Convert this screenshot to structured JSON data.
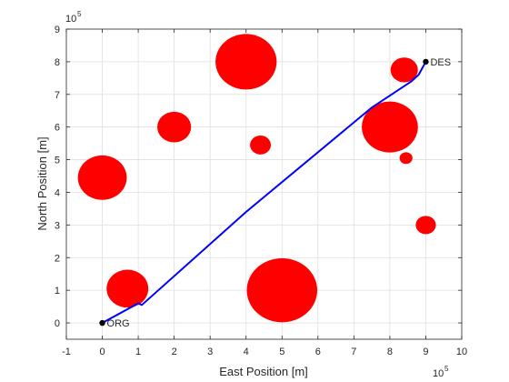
{
  "chart_data": {
    "type": "scatter",
    "title": "",
    "xlabel": "East Position [m]",
    "ylabel": "North Position [m]",
    "xlim": [
      -100000,
      1000000
    ],
    "ylim": [
      -50000,
      900000
    ],
    "x_exponent_label": "10",
    "x_exponent_power": "5",
    "y_exponent_label": "10",
    "y_exponent_power": "5",
    "x_ticks": [
      -100000,
      0,
      100000,
      200000,
      300000,
      400000,
      500000,
      600000,
      700000,
      800000,
      900000,
      1000000
    ],
    "x_tick_labels": [
      "-1",
      "0",
      "1",
      "2",
      "3",
      "4",
      "5",
      "6",
      "7",
      "8",
      "9",
      "10"
    ],
    "y_ticks": [
      0,
      100000,
      200000,
      300000,
      400000,
      500000,
      600000,
      700000,
      800000,
      900000
    ],
    "y_tick_labels": [
      "0",
      "1",
      "2",
      "3",
      "4",
      "5",
      "6",
      "7",
      "8",
      "9"
    ],
    "grid": true,
    "obstacle_color": "#ff0000",
    "path_color": "#0000ff",
    "point_color": "#000000",
    "obstacles": [
      {
        "x": 400000,
        "y": 800000,
        "r": 85000
      },
      {
        "x": 200000,
        "y": 600000,
        "r": 47000
      },
      {
        "x": 0,
        "y": 445000,
        "r": 68000
      },
      {
        "x": 70000,
        "y": 105000,
        "r": 58000
      },
      {
        "x": 500000,
        "y": 100000,
        "r": 98000
      },
      {
        "x": 440000,
        "y": 545000,
        "r": 29000
      },
      {
        "x": 800000,
        "y": 600000,
        "r": 78000
      },
      {
        "x": 840000,
        "y": 775000,
        "r": 38000
      },
      {
        "x": 845000,
        "y": 505000,
        "r": 18000
      },
      {
        "x": 900000,
        "y": 300000,
        "r": 28000
      }
    ],
    "path": [
      [
        0,
        0
      ],
      [
        100000,
        60000
      ],
      [
        110000,
        55000
      ],
      [
        400000,
        340000
      ],
      [
        750000,
        660000
      ],
      [
        860000,
        740000
      ],
      [
        880000,
        760000
      ],
      [
        900000,
        800000
      ]
    ],
    "points": [
      {
        "label": "ORG",
        "x": 0,
        "y": 0
      },
      {
        "label": "DES",
        "x": 900000,
        "y": 800000
      }
    ]
  }
}
